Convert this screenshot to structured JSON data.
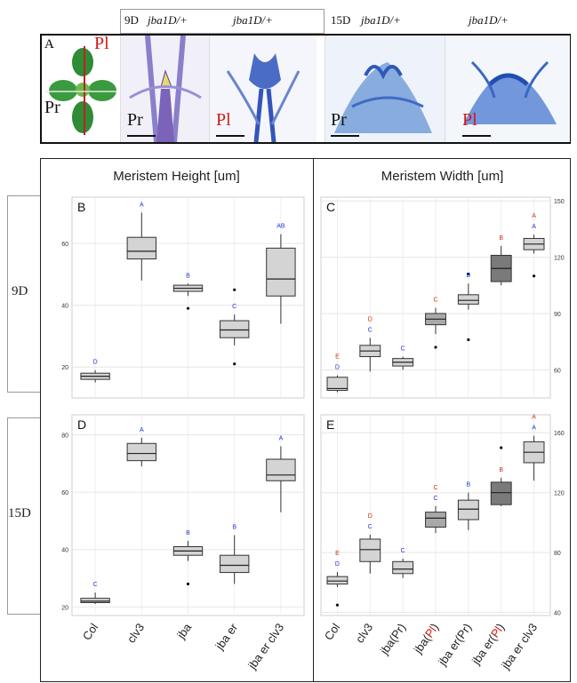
{
  "strip": {
    "panel_letter": "A",
    "header_9d": [
      "9D",
      "jba1D/+",
      "jba1D/+"
    ],
    "header_15d": [
      "15D",
      "jba1D/+",
      "jba1D/+"
    ],
    "labels": [
      "Pr",
      "Pl",
      "Pr",
      "Pl",
      "Pr",
      "Pl"
    ],
    "rosette_labels": {
      "pl": "Pl",
      "pr": "Pr"
    }
  },
  "headers": {
    "col1": "Meristem Height [um]",
    "col2": "Meristem Width [um]"
  },
  "rows": {
    "r1": "9D",
    "r2": "15D"
  },
  "colors": {
    "letter_blue": "#2233dd",
    "letter_red": "#cc3311",
    "light": "#d4d4d4",
    "mid": "#a9a9a9",
    "dark": "#7a7a7a"
  },
  "chart_data": [
    {
      "id": "B",
      "type": "box",
      "title": "B",
      "axis_side": "left",
      "categories": [
        "Col",
        "clv3",
        "jba",
        "jba er",
        "jba er clv3"
      ],
      "ylim": [
        10,
        75
      ],
      "yticks": [
        20,
        40,
        60
      ],
      "boxes": [
        {
          "lo": 15,
          "q1": 16,
          "med": 17,
          "q3": 18,
          "hi": 19,
          "outliers": [],
          "shade": "light",
          "letters": [
            {
              "t": "D",
              "c": "blue"
            }
          ]
        },
        {
          "lo": 48,
          "q1": 55,
          "med": 57.5,
          "q3": 62,
          "hi": 70,
          "outliers": [],
          "shade": "light",
          "letters": [
            {
              "t": "A",
              "c": "blue"
            }
          ]
        },
        {
          "lo": 43,
          "q1": 44.5,
          "med": 45.5,
          "q3": 46.5,
          "hi": 47,
          "outliers": [
            39
          ],
          "shade": "light",
          "letters": [
            {
              "t": "B",
              "c": "blue"
            }
          ]
        },
        {
          "lo": 27,
          "q1": 29.5,
          "med": 32,
          "q3": 35,
          "hi": 37,
          "outliers": [
            45,
            21
          ],
          "shade": "light",
          "letters": [
            {
              "t": "C",
              "c": "blue"
            }
          ]
        },
        {
          "lo": 34,
          "q1": 43,
          "med": 48.5,
          "q3": 58.5,
          "hi": 63,
          "outliers": [],
          "shade": "light",
          "letters": [
            {
              "t": "AB",
              "c": "blue"
            }
          ]
        }
      ]
    },
    {
      "id": "C",
      "type": "box",
      "title": "C",
      "axis_side": "right",
      "categories": [
        "Col",
        "clv3",
        "jba(Pr)",
        "jba(Pl)",
        "jba er(Pr)",
        "jba er(Pl)",
        "jba er clv3"
      ],
      "ylim": [
        45,
        152
      ],
      "yticks": [
        60,
        90,
        120,
        150
      ],
      "boxes": [
        {
          "lo": 48,
          "q1": 49,
          "med": 50,
          "q3": 56,
          "hi": 57,
          "outliers": [],
          "shade": "light",
          "letters": [
            {
              "t": "D",
              "c": "blue"
            },
            {
              "t": "E",
              "c": "red"
            }
          ]
        },
        {
          "lo": 59,
          "q1": 67,
          "med": 70,
          "q3": 73,
          "hi": 77,
          "outliers": [],
          "shade": "light",
          "letters": [
            {
              "t": "C",
              "c": "blue"
            },
            {
              "t": "D",
              "c": "red"
            }
          ]
        },
        {
          "lo": 60,
          "q1": 62,
          "med": 64,
          "q3": 66,
          "hi": 67,
          "outliers": [],
          "shade": "light",
          "letters": [
            {
              "t": "C",
              "c": "blue"
            }
          ]
        },
        {
          "lo": 79,
          "q1": 84,
          "med": 87,
          "q3": 90,
          "hi": 93,
          "outliers": [
            72
          ],
          "shade": "mid",
          "letters": [
            {
              "t": "C",
              "c": "red"
            }
          ]
        },
        {
          "lo": 92,
          "q1": 95,
          "med": 97,
          "q3": 100,
          "hi": 106,
          "outliers": [
            111,
            76
          ],
          "shade": "light",
          "letters": [
            {
              "t": "B",
              "c": "blue"
            }
          ]
        },
        {
          "lo": 105,
          "q1": 107,
          "med": 114,
          "q3": 121,
          "hi": 126,
          "outliers": [],
          "shade": "dark",
          "letters": [
            {
              "t": "B",
              "c": "red"
            }
          ]
        },
        {
          "lo": 122,
          "q1": 124,
          "med": 127,
          "q3": 130,
          "hi": 132,
          "outliers": [
            110
          ],
          "shade": "light",
          "letters": [
            {
              "t": "A",
              "c": "blue"
            },
            {
              "t": "A",
              "c": "red"
            }
          ]
        }
      ]
    },
    {
      "id": "D",
      "type": "box",
      "title": "D",
      "axis_side": "left",
      "categories": [
        "Col",
        "clv3",
        "jba",
        "jba er",
        "jba er clv3"
      ],
      "ylim": [
        17,
        87
      ],
      "yticks": [
        20,
        40,
        60,
        80
      ],
      "boxes": [
        {
          "lo": 21,
          "q1": 21.5,
          "med": 22,
          "q3": 23,
          "hi": 25,
          "outliers": [],
          "shade": "light",
          "letters": [
            {
              "t": "C",
              "c": "blue"
            }
          ]
        },
        {
          "lo": 69,
          "q1": 71,
          "med": 73.5,
          "q3": 77,
          "hi": 79,
          "outliers": [],
          "shade": "light",
          "letters": [
            {
              "t": "A",
              "c": "blue"
            }
          ]
        },
        {
          "lo": 36,
          "q1": 38,
          "med": 39.5,
          "q3": 41,
          "hi": 43,
          "outliers": [
            28
          ],
          "shade": "light",
          "letters": [
            {
              "t": "B",
              "c": "blue"
            }
          ]
        },
        {
          "lo": 28,
          "q1": 32,
          "med": 34.5,
          "q3": 38,
          "hi": 45,
          "outliers": [],
          "shade": "light",
          "letters": [
            {
              "t": "B",
              "c": "blue"
            }
          ]
        },
        {
          "lo": 53,
          "q1": 64,
          "med": 66,
          "q3": 71.5,
          "hi": 76,
          "outliers": [],
          "shade": "light",
          "letters": [
            {
              "t": "A",
              "c": "blue"
            }
          ]
        }
      ]
    },
    {
      "id": "E",
      "type": "box",
      "title": "E",
      "axis_side": "right",
      "categories": [
        "Col",
        "clv3",
        "jba(Pr)",
        "jba(Pl)",
        "jba er(Pr)",
        "jba er(Pl)",
        "jba er clv3"
      ],
      "ylim": [
        38,
        172
      ],
      "yticks": [
        40,
        80,
        120,
        160
      ],
      "boxes": [
        {
          "lo": 57,
          "q1": 59,
          "med": 61,
          "q3": 64,
          "hi": 67,
          "outliers": [
            45
          ],
          "shade": "light",
          "letters": [
            {
              "t": "D",
              "c": "blue"
            },
            {
              "t": "E",
              "c": "red"
            }
          ]
        },
        {
          "lo": 66,
          "q1": 74,
          "med": 82,
          "q3": 89,
          "hi": 92,
          "outliers": [],
          "shade": "light",
          "letters": [
            {
              "t": "C",
              "c": "blue"
            },
            {
              "t": "D",
              "c": "red"
            }
          ]
        },
        {
          "lo": 63,
          "q1": 66,
          "med": 69,
          "q3": 74,
          "hi": 76,
          "outliers": [],
          "shade": "light",
          "letters": [
            {
              "t": "C",
              "c": "blue"
            }
          ]
        },
        {
          "lo": 93,
          "q1": 97,
          "med": 103,
          "q3": 107,
          "hi": 111,
          "outliers": [],
          "shade": "mid",
          "letters": [
            {
              "t": "C",
              "c": "blue"
            },
            {
              "t": "C",
              "c": "red"
            }
          ]
        },
        {
          "lo": 95,
          "q1": 102,
          "med": 109,
          "q3": 115,
          "hi": 120,
          "outliers": [],
          "shade": "light",
          "letters": [
            {
              "t": "B",
              "c": "blue"
            }
          ]
        },
        {
          "lo": 111,
          "q1": 112,
          "med": 120,
          "q3": 127,
          "hi": 130,
          "outliers": [
            150
          ],
          "shade": "dark",
          "letters": [
            {
              "t": "B",
              "c": "red"
            }
          ]
        },
        {
          "lo": 128,
          "q1": 140,
          "med": 147,
          "q3": 154,
          "hi": 158,
          "outliers": [],
          "shade": "light",
          "letters": [
            {
              "t": "A",
              "c": "blue"
            },
            {
              "t": "A",
              "c": "red"
            }
          ]
        }
      ]
    }
  ]
}
